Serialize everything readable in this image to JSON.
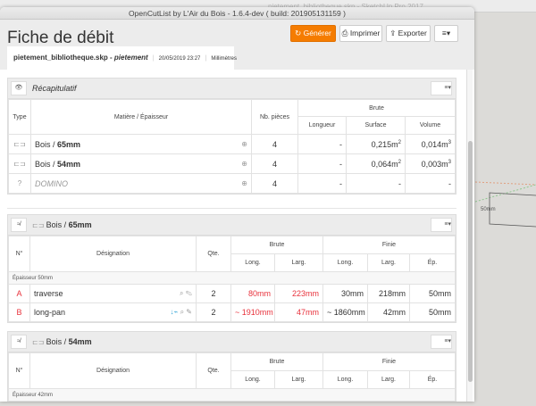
{
  "background": {
    "sketchup_title": "pietement_bibliotheque.skp - SketchUp Pro 2017",
    "dimension_label": "50mm"
  },
  "window": {
    "title": "OpenCutList by L'Air du Bois - 1.6.4-dev ( build: 201905131159 )"
  },
  "header": {
    "title": "Fiche de débit",
    "generate": "Générer",
    "print": "Imprimer",
    "export": "Exporter",
    "accent": "#f57c00"
  },
  "tab": {
    "file": "pietement_bibliotheque.skp",
    "model": "pietement",
    "date": "20/05/2019 23:27",
    "units": "Millimètres"
  },
  "summary": {
    "title": "Récapitulatif",
    "headers": {
      "type": "Type",
      "material": "Matière / Épaisseur",
      "count": "Nb. pièces",
      "brute": "Brute",
      "length": "Longueur",
      "surface": "Surface",
      "volume": "Volume"
    },
    "rows": [
      {
        "type": "wood",
        "material": "Bois / ",
        "thickness": "65mm",
        "count": "4",
        "length": "-",
        "surface": "0,215m",
        "volume": "0,014m"
      },
      {
        "type": "wood",
        "material": "Bois / ",
        "thickness": "54mm",
        "count": "4",
        "length": "-",
        "surface": "0,064m",
        "volume": "0,003m"
      },
      {
        "type": "?",
        "material": "DOMINO",
        "thickness": "",
        "count": "4",
        "length": "-",
        "surface": "-",
        "volume": "-"
      }
    ]
  },
  "groups": [
    {
      "material": "Bois / ",
      "thickness": "65mm",
      "group_label": "Épaisseur 50mm",
      "rows": [
        {
          "n": "A",
          "name": "traverse",
          "qty": "2",
          "bl": "80mm",
          "bw": "223mm",
          "fl": "30mm",
          "fw": "218mm",
          "ft": "50mm"
        },
        {
          "n": "B",
          "name": "long-pan",
          "qty": "2",
          "bl": "~ 1910mm",
          "bw": "47mm",
          "fl": "~ 1860mm",
          "fw": "42mm",
          "ft": "50mm"
        }
      ]
    },
    {
      "material": "Bois / ",
      "thickness": "54mm",
      "group_label": "Épaisseur 42mm",
      "rows": []
    }
  ],
  "parts_headers": {
    "n": "N°",
    "name": "Désignation",
    "qty": "Qte.",
    "brute": "Brute",
    "finie": "Finie",
    "long": "Long.",
    "larg": "Larg.",
    "ep": "Ép."
  }
}
